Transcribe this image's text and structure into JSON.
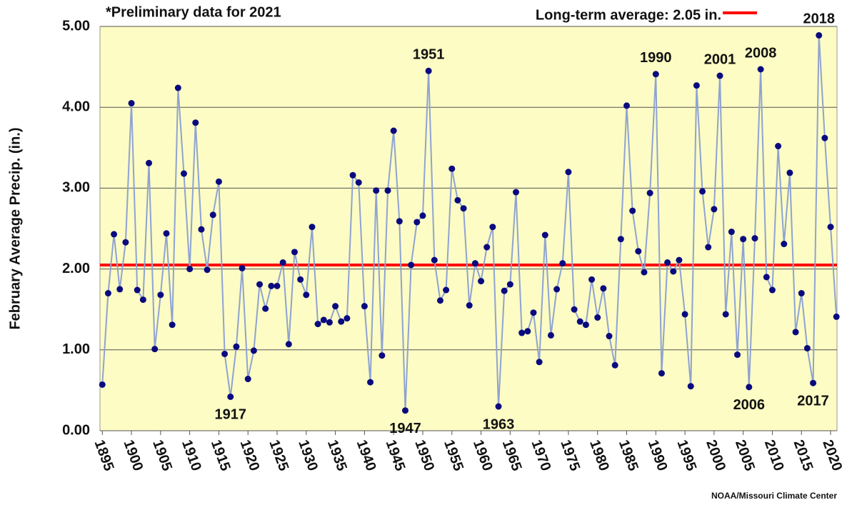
{
  "chart_data": {
    "type": "line",
    "note": "*Preliminary data for 2021",
    "y_label": "February Average  Precip.  (in.)",
    "source": "NOAA/Missouri Climate Center",
    "x": [
      1895,
      1896,
      1897,
      1898,
      1899,
      1900,
      1901,
      1902,
      1903,
      1904,
      1905,
      1906,
      1907,
      1908,
      1909,
      1910,
      1911,
      1912,
      1913,
      1914,
      1915,
      1916,
      1917,
      1918,
      1919,
      1920,
      1921,
      1922,
      1923,
      1924,
      1925,
      1926,
      1927,
      1928,
      1929,
      1930,
      1931,
      1932,
      1933,
      1934,
      1935,
      1936,
      1937,
      1938,
      1939,
      1940,
      1941,
      1942,
      1943,
      1944,
      1945,
      1946,
      1947,
      1948,
      1949,
      1950,
      1951,
      1952,
      1953,
      1954,
      1955,
      1956,
      1957,
      1958,
      1959,
      1960,
      1961,
      1962,
      1963,
      1964,
      1965,
      1966,
      1967,
      1968,
      1969,
      1970,
      1971,
      1972,
      1973,
      1974,
      1975,
      1976,
      1977,
      1978,
      1979,
      1980,
      1981,
      1982,
      1983,
      1984,
      1985,
      1986,
      1987,
      1988,
      1989,
      1990,
      1991,
      1992,
      1993,
      1994,
      1995,
      1996,
      1997,
      1998,
      1999,
      2000,
      2001,
      2002,
      2003,
      2004,
      2005,
      2006,
      2007,
      2008,
      2009,
      2010,
      2011,
      2012,
      2013,
      2014,
      2015,
      2016,
      2017,
      2018,
      2019,
      2020,
      2021
    ],
    "series": [
      {
        "name": "February Average Precip.",
        "color": "#8fa3d1",
        "marker_color": "#0a0a80",
        "values": [
          0.57,
          1.7,
          2.43,
          1.75,
          2.33,
          4.05,
          1.74,
          1.62,
          3.31,
          1.01,
          1.68,
          2.44,
          1.31,
          4.24,
          3.18,
          2.0,
          3.81,
          2.49,
          1.99,
          2.67,
          3.08,
          0.95,
          0.42,
          1.04,
          2.01,
          0.64,
          0.99,
          1.81,
          1.51,
          1.79,
          1.79,
          2.08,
          1.07,
          2.21,
          1.87,
          1.68,
          2.52,
          1.32,
          1.37,
          1.34,
          1.54,
          1.35,
          1.39,
          3.16,
          3.07,
          1.54,
          0.6,
          2.97,
          0.93,
          2.97,
          3.71,
          2.59,
          0.25,
          2.05,
          2.58,
          2.66,
          4.45,
          2.11,
          1.61,
          1.74,
          3.24,
          2.85,
          2.75,
          1.55,
          2.07,
          1.85,
          2.27,
          2.52,
          0.3,
          1.73,
          1.81,
          2.95,
          1.21,
          1.23,
          1.46,
          0.85,
          2.42,
          1.18,
          1.75,
          2.07,
          3.2,
          1.5,
          1.35,
          1.31,
          1.87,
          1.4,
          1.76,
          1.17,
          0.81,
          2.37,
          4.02,
          2.72,
          2.22,
          1.96,
          2.94,
          4.41,
          0.71,
          2.08,
          1.97,
          2.11,
          1.44,
          0.55,
          4.27,
          2.96,
          2.27,
          2.74,
          4.39,
          1.44,
          2.46,
          0.94,
          2.37,
          0.54,
          2.38,
          4.47,
          1.9,
          1.74,
          3.52,
          2.31,
          3.19,
          1.22,
          1.7,
          1.02,
          0.59,
          4.89,
          3.62,
          2.52,
          1.41
        ]
      }
    ],
    "reference_line": {
      "value": 2.05,
      "label": "Long-term average: 2.05 in.",
      "color": "#ff0000"
    },
    "annotations": [
      {
        "text": "1917",
        "x": 1917,
        "position": "below"
      },
      {
        "text": "1947",
        "x": 1947,
        "position": "below"
      },
      {
        "text": "1951",
        "x": 1951,
        "position": "above"
      },
      {
        "text": "1963",
        "x": 1963,
        "position": "below"
      },
      {
        "text": "1990",
        "x": 1990,
        "position": "above"
      },
      {
        "text": "2001",
        "x": 2001,
        "position": "above"
      },
      {
        "text": "2006",
        "x": 2006,
        "position": "below"
      },
      {
        "text": "2008",
        "x": 2008,
        "position": "above"
      },
      {
        "text": "2017",
        "x": 2017,
        "position": "below"
      },
      {
        "text": "2018",
        "x": 2018,
        "position": "above"
      }
    ],
    "xlim": [
      1894.6,
      2021.1
    ],
    "xticks": [
      1895,
      1900,
      1905,
      1910,
      1915,
      1920,
      1925,
      1930,
      1935,
      1940,
      1945,
      1950,
      1955,
      1960,
      1965,
      1970,
      1975,
      1980,
      1985,
      1990,
      1995,
      2000,
      2005,
      2010,
      2015,
      2020
    ],
    "ylim": [
      0,
      5
    ],
    "yticks": [
      {
        "value": 0,
        "label": "0.00"
      },
      {
        "value": 1,
        "label": "1.00"
      },
      {
        "value": 2,
        "label": "2.00"
      },
      {
        "value": 3,
        "label": "3.00"
      },
      {
        "value": 4,
        "label": "4.00"
      },
      {
        "value": 5,
        "label": "5.00"
      }
    ],
    "grid": true,
    "background": "#fcfcc4"
  }
}
